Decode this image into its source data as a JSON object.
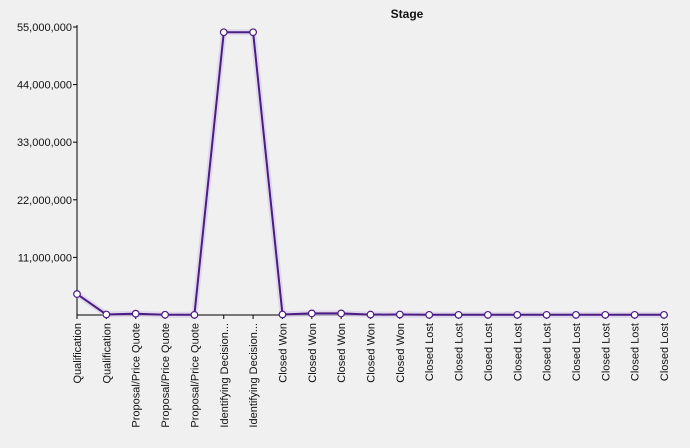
{
  "chart_data": {
    "type": "line",
    "title": "Stage",
    "xlabel": "",
    "ylabel": "",
    "ylim": [
      0,
      55000000
    ],
    "yticks": [
      11000000,
      22000000,
      33000000,
      44000000,
      55000000
    ],
    "ytick_labels": [
      "11,000,000",
      "22,000,000",
      "33,000,000",
      "44,000,000",
      "55,000,000"
    ],
    "grid": false,
    "legend": "none",
    "colors": {
      "line": "#4b1c84",
      "marker_fill": "#ffffff",
      "background": "#f0f0f0"
    },
    "categories": [
      "Qualification",
      "Qualification",
      "Proposal/Price Quote",
      "Proposal/Price Quote",
      "Proposal/Price Quote",
      "Identifying Decision...",
      "Identifying Decision...",
      "Closed Won",
      "Closed Won",
      "Closed Won",
      "Closed Won",
      "Closed Won",
      "Closed Lost",
      "Closed Lost",
      "Closed Lost",
      "Closed Lost",
      "Closed Lost",
      "Closed Lost",
      "Closed Lost",
      "Closed Lost",
      "Closed Lost"
    ],
    "values": [
      4000000,
      100000,
      250000,
      50000,
      30000,
      54000000,
      54000000,
      100000,
      300000,
      300000,
      80000,
      100000,
      30000,
      30000,
      30000,
      30000,
      30000,
      30000,
      30000,
      30000,
      30000
    ]
  }
}
